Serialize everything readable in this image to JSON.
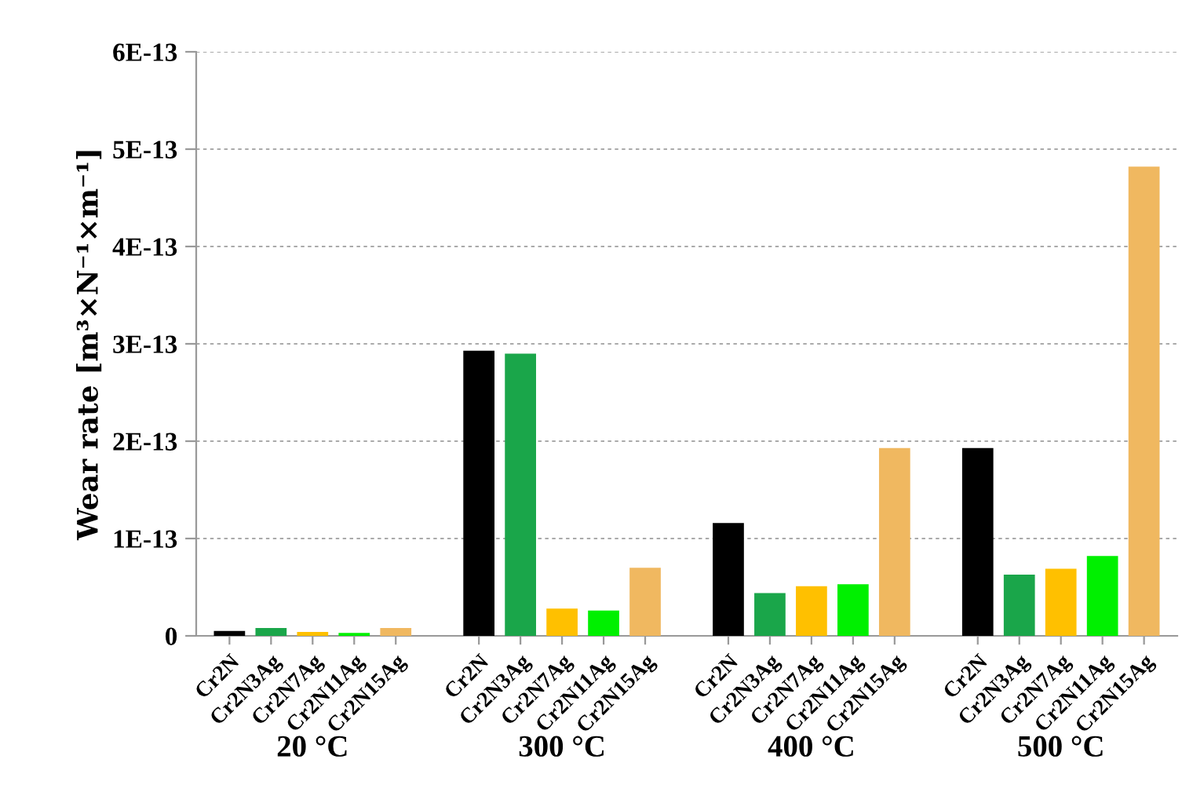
{
  "chart_data": {
    "type": "bar",
    "ylabel": "Wear rate [m³×N⁻¹×m⁻¹]",
    "categories": [
      "20 °C",
      "300 °C",
      "400 °C",
      "500 °C"
    ],
    "series": [
      {
        "name": "Cr2N",
        "color": "#000000",
        "values": [
          5e-15,
          2.93e-13,
          1.16e-13,
          1.93e-13
        ]
      },
      {
        "name": "Cr2N3Ag",
        "color": "#1aa64a",
        "values": [
          8e-15,
          2.9e-13,
          4.4e-14,
          6.3e-14
        ]
      },
      {
        "name": "Cr2N7Ag",
        "color": "#ffc000",
        "values": [
          4e-15,
          2.8e-14,
          5.1e-14,
          6.9e-14
        ]
      },
      {
        "name": "Cr2N11Ag",
        "color": "#00f000",
        "values": [
          3e-15,
          2.6e-14,
          5.3e-14,
          8.2e-14
        ]
      },
      {
        "name": "Cr2N15Ag",
        "color": "#f0b860",
        "values": [
          8e-15,
          7e-14,
          1.93e-13,
          4.82e-13
        ]
      }
    ],
    "ylim": [
      0,
      6e-13
    ],
    "yticks": [
      0,
      {
        "value": 1e-13,
        "label": "1E-13"
      },
      {
        "value": 2e-13,
        "label": "2E-13"
      },
      {
        "value": 3e-13,
        "label": "3E-13"
      },
      {
        "value": 4e-13,
        "label": "4E-13"
      },
      {
        "value": 5e-13,
        "label": "5E-13"
      },
      {
        "value": 6e-13,
        "label": "6E-13"
      }
    ],
    "grid": "y",
    "legend": false
  }
}
